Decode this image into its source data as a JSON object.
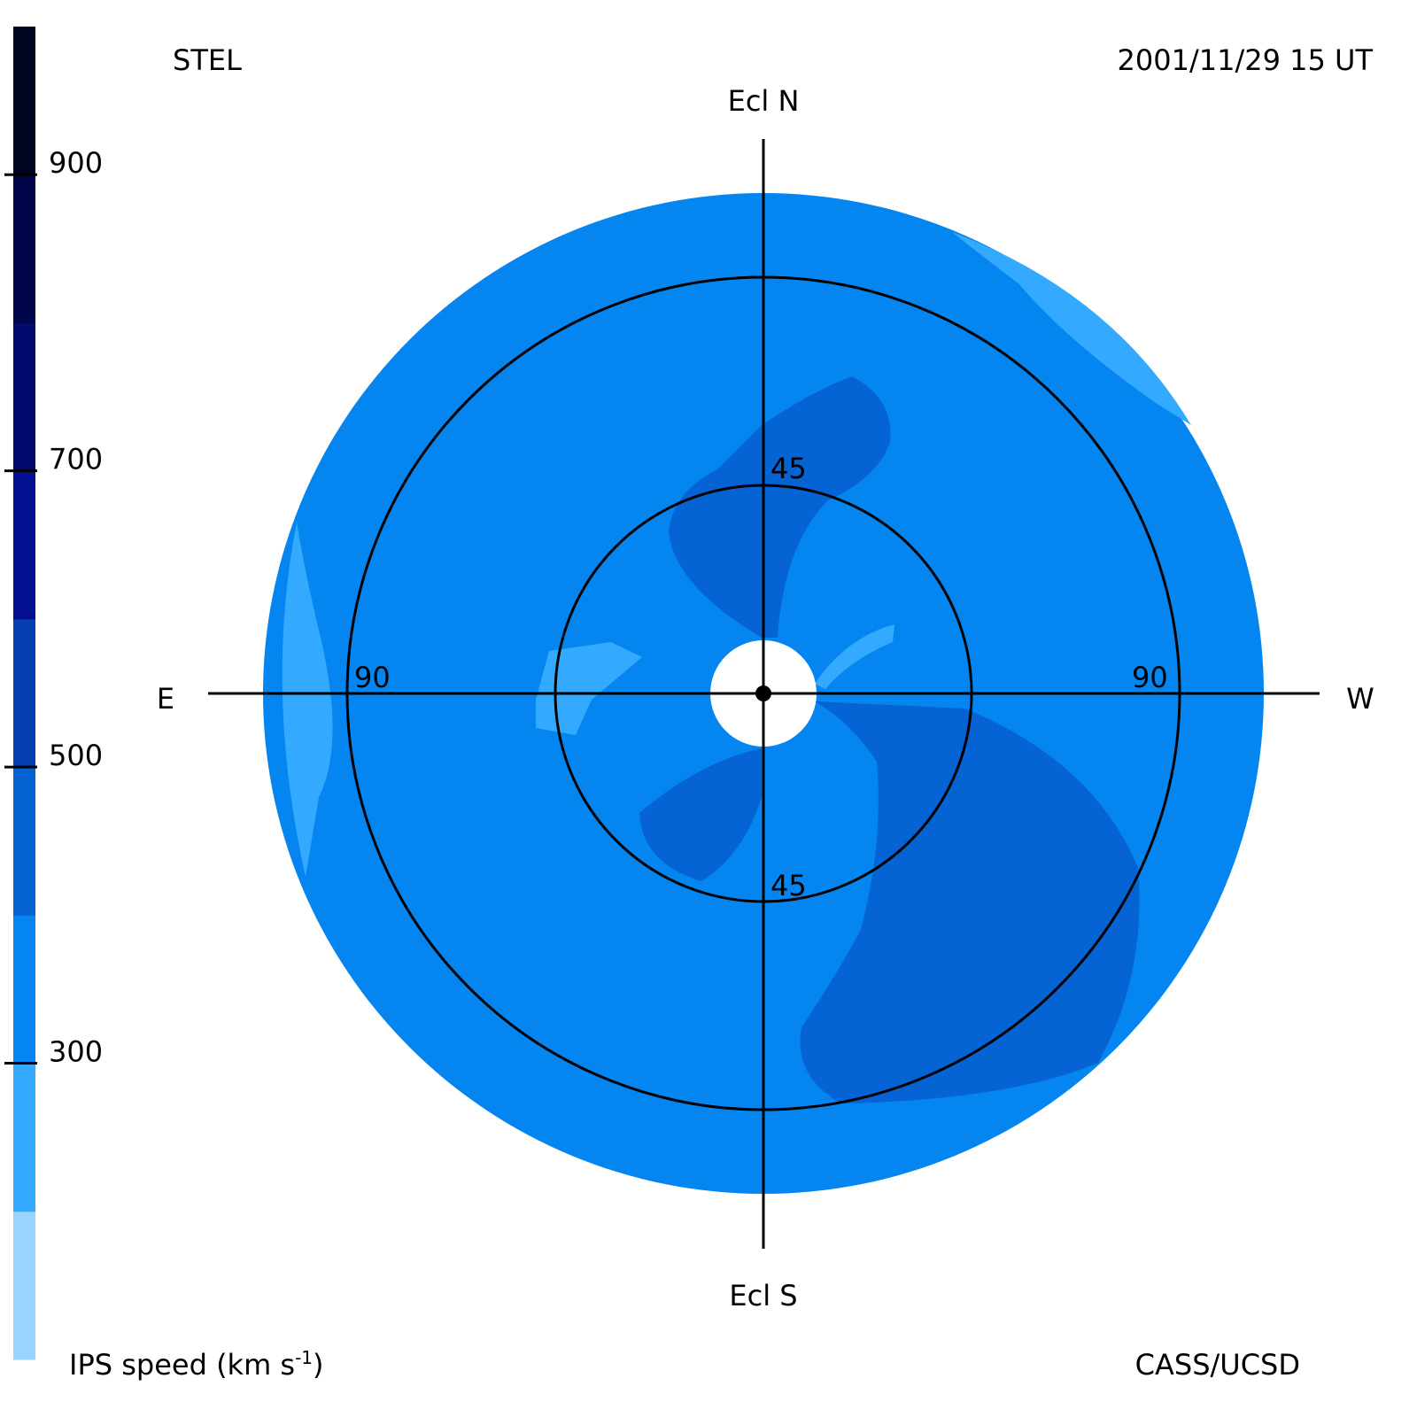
{
  "header": {
    "left": "STEL",
    "right": "2001/11/29 15 UT"
  },
  "directions": {
    "north": "Ecl N",
    "south": "Ecl S",
    "east": "E",
    "west": "W"
  },
  "ring_labels": {
    "inner_north": "45",
    "inner_south": "45",
    "outer_east": "90",
    "outer_west": "90"
  },
  "colorbar": {
    "label": [
      "IPS speed (km s",
      "-1",
      ")"
    ],
    "lim": [
      100,
      1000
    ],
    "ticks": [
      300,
      500,
      700,
      900
    ],
    "colors": [
      "#99d3ff",
      "#33aaff",
      "#0585ef",
      "#0563d3",
      "#0440b0",
      "#03108f",
      "#020a70",
      "#01064a",
      "#000522"
    ]
  },
  "footer": {
    "right": "CASS/UCSD"
  }
}
